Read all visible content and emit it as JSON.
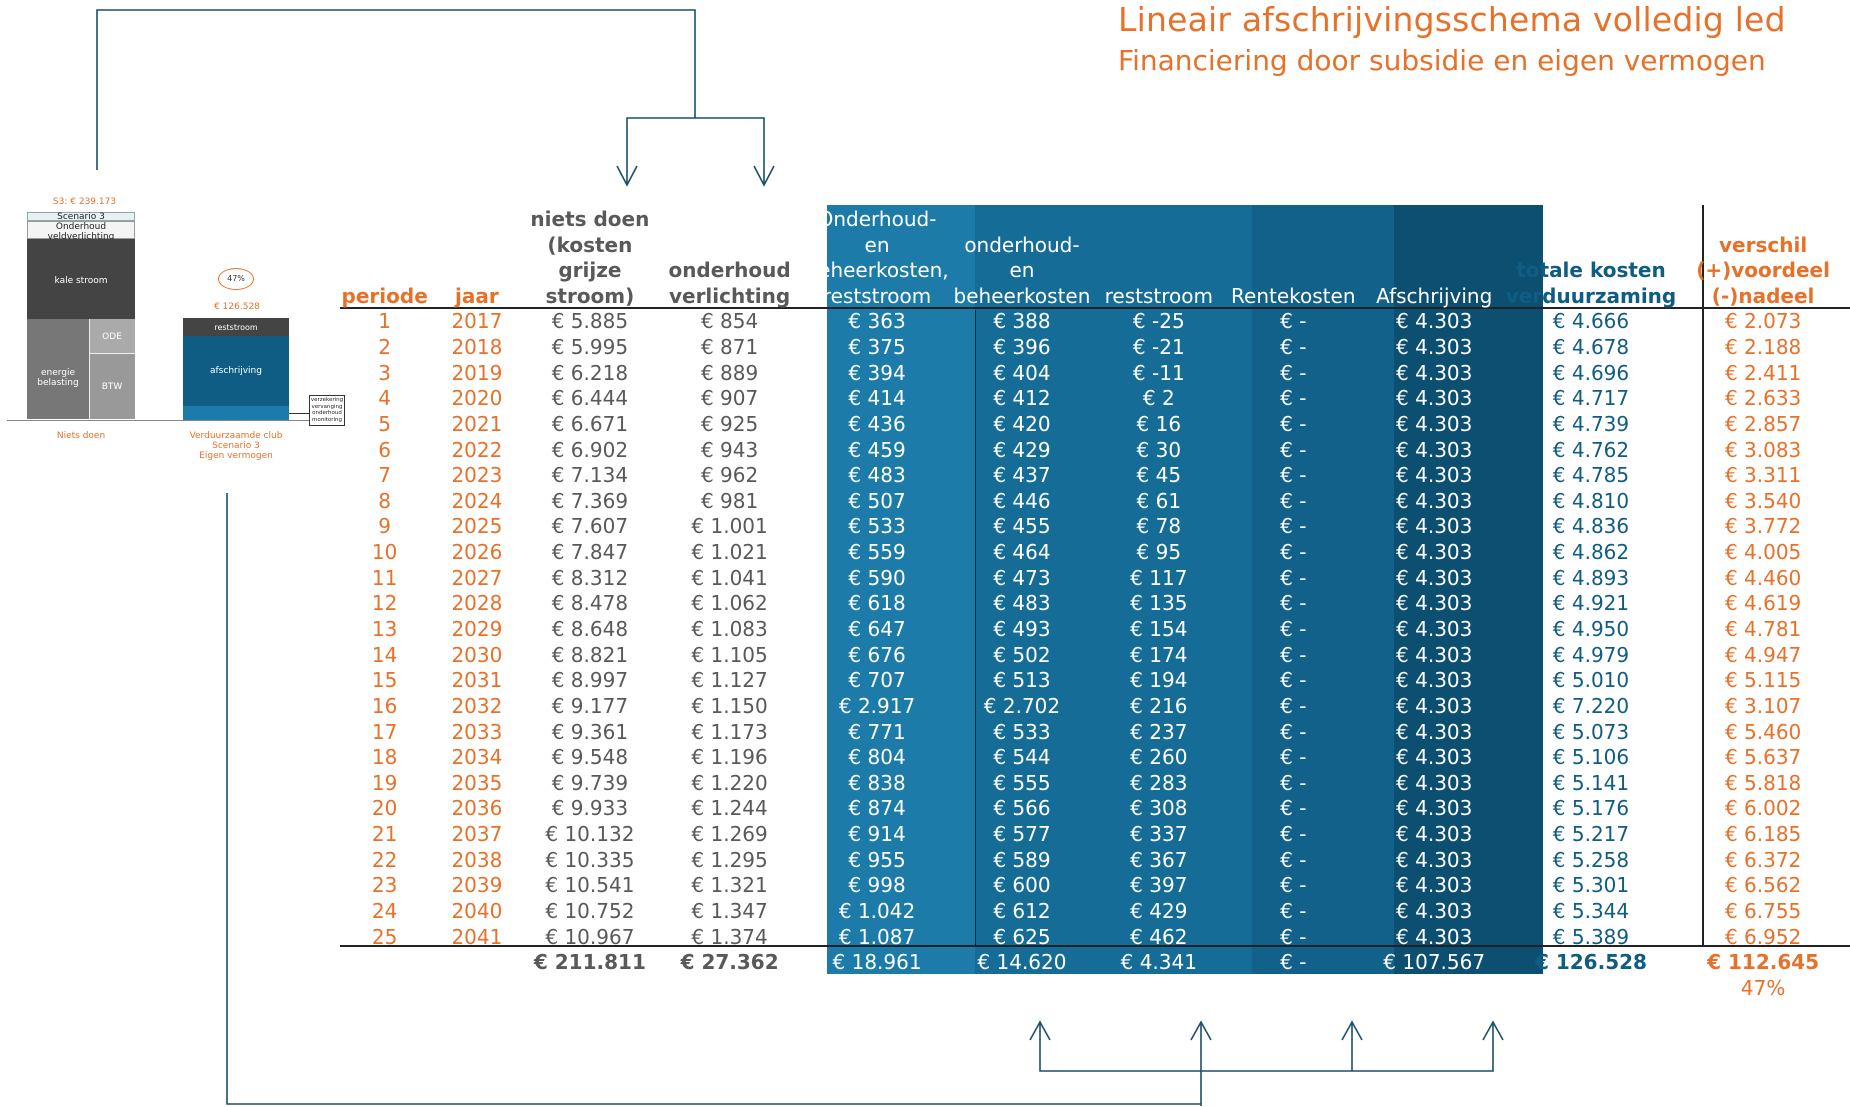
{
  "title": "Lineair afschrijvingsschema volledig led",
  "subtitle": "Financiering door subsidie en eigen vermogen",
  "colors": {
    "orange": "#e8712a",
    "gray": "#595959",
    "blue_dark": "#0f5c84",
    "band_light": "#1c7ba8",
    "band_mid": "#156c96",
    "band_dark": "#0c4f70"
  },
  "headers": {
    "periode": "periode",
    "jaar": "jaar",
    "niets_doen": "niets doen (kosten grijze stroom)",
    "onderhoud_verlichting": "onderhoud verlichting",
    "onderhoud_beheer_rest": "Onderhoud- en beheerkosten, reststroom",
    "onderhoud_beheer": "onderhoud- en beheerkosten",
    "reststroom": "reststroom",
    "rentekosten": "Rentekosten",
    "afschrijving": "Afschrijving",
    "totale_kosten": "totale kosten verduurzaming",
    "verschil": "verschil (+)voordeel (-)nadeel"
  },
  "rows": [
    {
      "p": "1",
      "y": "2017",
      "nd": "€ 5.885",
      "ov": "€ 854",
      "obr": "€ 363",
      "ob": "€ 388",
      "rs": "€ -25",
      "rk": "€ -",
      "af": "€ 4.303",
      "tk": "€ 4.666",
      "vs": "€ 2.073"
    },
    {
      "p": "2",
      "y": "2018",
      "nd": "€ 5.995",
      "ov": "€ 871",
      "obr": "€ 375",
      "ob": "€ 396",
      "rs": "€ -21",
      "rk": "€ -",
      "af": "€ 4.303",
      "tk": "€ 4.678",
      "vs": "€ 2.188"
    },
    {
      "p": "3",
      "y": "2019",
      "nd": "€ 6.218",
      "ov": "€ 889",
      "obr": "€ 394",
      "ob": "€ 404",
      "rs": "€ -11",
      "rk": "€ -",
      "af": "€ 4.303",
      "tk": "€ 4.696",
      "vs": "€ 2.411"
    },
    {
      "p": "4",
      "y": "2020",
      "nd": "€ 6.444",
      "ov": "€ 907",
      "obr": "€ 414",
      "ob": "€ 412",
      "rs": "€ 2",
      "rk": "€ -",
      "af": "€ 4.303",
      "tk": "€ 4.717",
      "vs": "€ 2.633"
    },
    {
      "p": "5",
      "y": "2021",
      "nd": "€ 6.671",
      "ov": "€ 925",
      "obr": "€ 436",
      "ob": "€ 420",
      "rs": "€ 16",
      "rk": "€ -",
      "af": "€ 4.303",
      "tk": "€ 4.739",
      "vs": "€ 2.857"
    },
    {
      "p": "6",
      "y": "2022",
      "nd": "€ 6.902",
      "ov": "€ 943",
      "obr": "€ 459",
      "ob": "€ 429",
      "rs": "€ 30",
      "rk": "€ -",
      "af": "€ 4.303",
      "tk": "€ 4.762",
      "vs": "€ 3.083"
    },
    {
      "p": "7",
      "y": "2023",
      "nd": "€ 7.134",
      "ov": "€ 962",
      "obr": "€ 483",
      "ob": "€ 437",
      "rs": "€ 45",
      "rk": "€ -",
      "af": "€ 4.303",
      "tk": "€ 4.785",
      "vs": "€ 3.311"
    },
    {
      "p": "8",
      "y": "2024",
      "nd": "€ 7.369",
      "ov": "€ 981",
      "obr": "€ 507",
      "ob": "€ 446",
      "rs": "€ 61",
      "rk": "€ -",
      "af": "€ 4.303",
      "tk": "€ 4.810",
      "vs": "€ 3.540"
    },
    {
      "p": "9",
      "y": "2025",
      "nd": "€ 7.607",
      "ov": "€ 1.001",
      "obr": "€ 533",
      "ob": "€ 455",
      "rs": "€ 78",
      "rk": "€ -",
      "af": "€ 4.303",
      "tk": "€ 4.836",
      "vs": "€ 3.772"
    },
    {
      "p": "10",
      "y": "2026",
      "nd": "€ 7.847",
      "ov": "€ 1.021",
      "obr": "€ 559",
      "ob": "€ 464",
      "rs": "€ 95",
      "rk": "€ -",
      "af": "€ 4.303",
      "tk": "€ 4.862",
      "vs": "€ 4.005"
    },
    {
      "p": "11",
      "y": "2027",
      "nd": "€ 8.312",
      "ov": "€ 1.041",
      "obr": "€ 590",
      "ob": "€ 473",
      "rs": "€ 117",
      "rk": "€ -",
      "af": "€ 4.303",
      "tk": "€ 4.893",
      "vs": "€ 4.460"
    },
    {
      "p": "12",
      "y": "2028",
      "nd": "€ 8.478",
      "ov": "€ 1.062",
      "obr": "€ 618",
      "ob": "€ 483",
      "rs": "€ 135",
      "rk": "€ -",
      "af": "€ 4.303",
      "tk": "€ 4.921",
      "vs": "€ 4.619"
    },
    {
      "p": "13",
      "y": "2029",
      "nd": "€ 8.648",
      "ov": "€ 1.083",
      "obr": "€ 647",
      "ob": "€ 493",
      "rs": "€ 154",
      "rk": "€ -",
      "af": "€ 4.303",
      "tk": "€ 4.950",
      "vs": "€ 4.781"
    },
    {
      "p": "14",
      "y": "2030",
      "nd": "€ 8.821",
      "ov": "€ 1.105",
      "obr": "€ 676",
      "ob": "€ 502",
      "rs": "€ 174",
      "rk": "€ -",
      "af": "€ 4.303",
      "tk": "€ 4.979",
      "vs": "€ 4.947"
    },
    {
      "p": "15",
      "y": "2031",
      "nd": "€ 8.997",
      "ov": "€ 1.127",
      "obr": "€ 707",
      "ob": "€ 513",
      "rs": "€ 194",
      "rk": "€ -",
      "af": "€ 4.303",
      "tk": "€ 5.010",
      "vs": "€ 5.115"
    },
    {
      "p": "16",
      "y": "2032",
      "nd": "€ 9.177",
      "ov": "€ 1.150",
      "obr": "€ 2.917",
      "ob": "€ 2.702",
      "rs": "€ 216",
      "rk": "€ -",
      "af": "€ 4.303",
      "tk": "€ 7.220",
      "vs": "€ 3.107"
    },
    {
      "p": "17",
      "y": "2033",
      "nd": "€ 9.361",
      "ov": "€ 1.173",
      "obr": "€ 771",
      "ob": "€ 533",
      "rs": "€ 237",
      "rk": "€ -",
      "af": "€ 4.303",
      "tk": "€ 5.073",
      "vs": "€ 5.460"
    },
    {
      "p": "18",
      "y": "2034",
      "nd": "€ 9.548",
      "ov": "€ 1.196",
      "obr": "€ 804",
      "ob": "€ 544",
      "rs": "€ 260",
      "rk": "€ -",
      "af": "€ 4.303",
      "tk": "€ 5.106",
      "vs": "€ 5.637"
    },
    {
      "p": "19",
      "y": "2035",
      "nd": "€ 9.739",
      "ov": "€ 1.220",
      "obr": "€ 838",
      "ob": "€ 555",
      "rs": "€ 283",
      "rk": "€ -",
      "af": "€ 4.303",
      "tk": "€ 5.141",
      "vs": "€ 5.818"
    },
    {
      "p": "20",
      "y": "2036",
      "nd": "€ 9.933",
      "ov": "€ 1.244",
      "obr": "€ 874",
      "ob": "€ 566",
      "rs": "€ 308",
      "rk": "€ -",
      "af": "€ 4.303",
      "tk": "€ 5.176",
      "vs": "€ 6.002"
    },
    {
      "p": "21",
      "y": "2037",
      "nd": "€ 10.132",
      "ov": "€ 1.269",
      "obr": "€ 914",
      "ob": "€ 577",
      "rs": "€ 337",
      "rk": "€ -",
      "af": "€ 4.303",
      "tk": "€ 5.217",
      "vs": "€ 6.185"
    },
    {
      "p": "22",
      "y": "2038",
      "nd": "€ 10.335",
      "ov": "€ 1.295",
      "obr": "€ 955",
      "ob": "€ 589",
      "rs": "€ 367",
      "rk": "€ -",
      "af": "€ 4.303",
      "tk": "€ 5.258",
      "vs": "€ 6.372"
    },
    {
      "p": "23",
      "y": "2039",
      "nd": "€ 10.541",
      "ov": "€ 1.321",
      "obr": "€ 998",
      "ob": "€ 600",
      "rs": "€ 397",
      "rk": "€ -",
      "af": "€ 4.303",
      "tk": "€ 5.301",
      "vs": "€ 6.562"
    },
    {
      "p": "24",
      "y": "2040",
      "nd": "€ 10.752",
      "ov": "€ 1.347",
      "obr": "€ 1.042",
      "ob": "€ 612",
      "rs": "€ 429",
      "rk": "€ -",
      "af": "€ 4.303",
      "tk": "€ 5.344",
      "vs": "€ 6.755"
    },
    {
      "p": "25",
      "y": "2041",
      "nd": "€ 10.967",
      "ov": "€ 1.374",
      "obr": "€ 1.087",
      "ob": "€ 625",
      "rs": "€ 462",
      "rk": "€ -",
      "af": "€ 4.303",
      "tk": "€ 5.389",
      "vs": "€ 6.952"
    }
  ],
  "totals": {
    "nd": "€ 211.811",
    "ov": "€ 27.362",
    "obr": "€ 18.961",
    "ob": "€ 14.620",
    "rs": "€ 4.341",
    "rk": "€ -",
    "af": "€ 107.567",
    "tk": "€ 126.528",
    "vs": "€ 112.645"
  },
  "percentage": "47%",
  "mini_chart": {
    "top_label": "S3: € 239.173",
    "bar1": {
      "scenario": "Scenario 3",
      "onderhoud": "Onderhoud veldverlichting",
      "kale_stroom": "kale stroom",
      "energie": "energie belasting",
      "ode": "ODE",
      "btw": "BTW",
      "caption": "Niets doen"
    },
    "bar2": {
      "pct": "47%",
      "amount": "€ 126.528",
      "reststroom": "reststroom",
      "afschrijving": "afschrijving",
      "caption_1": "Verduurzaamde club",
      "caption_2": "Scenario 3",
      "caption_3": "Eigen vermogen",
      "legend_1": "verzekering",
      "legend_2": "vervanging",
      "legend_3": "onderhoud",
      "legend_4": "monitoring"
    }
  }
}
